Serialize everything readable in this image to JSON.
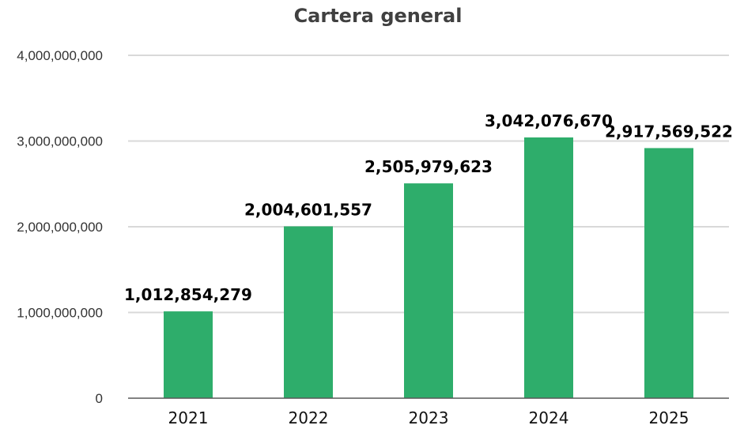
{
  "chart_data": {
    "type": "bar",
    "title": "Cartera general",
    "xlabel": "",
    "ylabel": "",
    "categories": [
      "2021",
      "2022",
      "2023",
      "2024",
      "2025"
    ],
    "values": [
      1012854279,
      2004601557,
      2505979623,
      3042076670,
      2917569522
    ],
    "value_labels": [
      "1,012,854,279",
      "2,004,601,557",
      "2,505,979,623",
      "3,042,076,670",
      "2,917,569,522"
    ],
    "ylim": [
      0,
      4000000000
    ],
    "yticks": [
      0,
      1000000000,
      2000000000,
      3000000000,
      4000000000
    ],
    "ytick_labels": [
      "0",
      "1,000,000,000",
      "2,000,000,000",
      "3,000,000,000",
      "4,000,000,000"
    ],
    "grid": true,
    "legend": "none",
    "colors": {
      "bar": "#2EAD6B",
      "grid": "#D9D9D9",
      "axis": "#595959"
    }
  }
}
